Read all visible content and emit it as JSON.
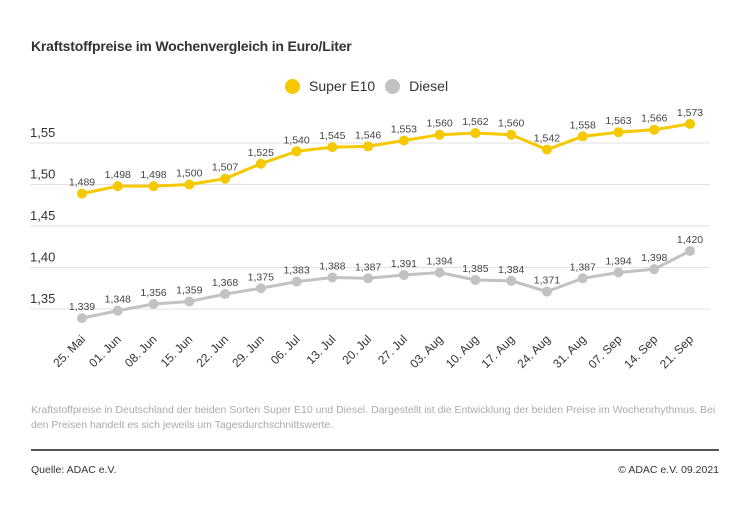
{
  "chart_data": {
    "type": "line",
    "title": "Kraftstoffpreise im Wochenvergleich in Euro/Liter",
    "categories": [
      "25. Mai",
      "01. Jun",
      "08. Jun",
      "15. Jun",
      "22. Jun",
      "29. Jun",
      "06. Jul",
      "13. Jul",
      "20. Jul",
      "27. Jul",
      "03. Aug",
      "10. Aug",
      "17. Aug",
      "24. Aug",
      "31. Aug",
      "07. Sep",
      "14. Sep",
      "21. Sep"
    ],
    "series": [
      {
        "name": "Super E10",
        "color": "#f5c800",
        "values": [
          1.489,
          1.498,
          1.498,
          1.5,
          1.507,
          1.525,
          1.54,
          1.545,
          1.546,
          1.553,
          1.56,
          1.562,
          1.56,
          1.542,
          1.558,
          1.563,
          1.566,
          1.573
        ]
      },
      {
        "name": "Diesel",
        "color": "#c2c2c2",
        "values": [
          1.339,
          1.348,
          1.356,
          1.359,
          1.368,
          1.375,
          1.383,
          1.388,
          1.387,
          1.391,
          1.394,
          1.385,
          1.384,
          1.371,
          1.387,
          1.394,
          1.398,
          1.42
        ]
      }
    ],
    "yticks": [
      1.35,
      1.4,
      1.45,
      1.5,
      1.55
    ],
    "ytick_labels": [
      "1,35",
      "1,40",
      "1,45",
      "1,50",
      "1,55"
    ],
    "grid": true,
    "legend_placement": "top-center",
    "xlabel": "",
    "ylabel": ""
  },
  "footer": {
    "note": "Kraftstoffpreise in Deutschland der beiden Sorten Super E10 und Diesel. Dargestellt ist die Entwicklung der beiden Preise im Wochenrhythmus. Bei den Preisen handelt es sich jeweils um Tagesdurchschnittswerte.",
    "source": "Quelle: ADAC e.V.",
    "copyright": "© ADAC e.V. 09.2021"
  }
}
